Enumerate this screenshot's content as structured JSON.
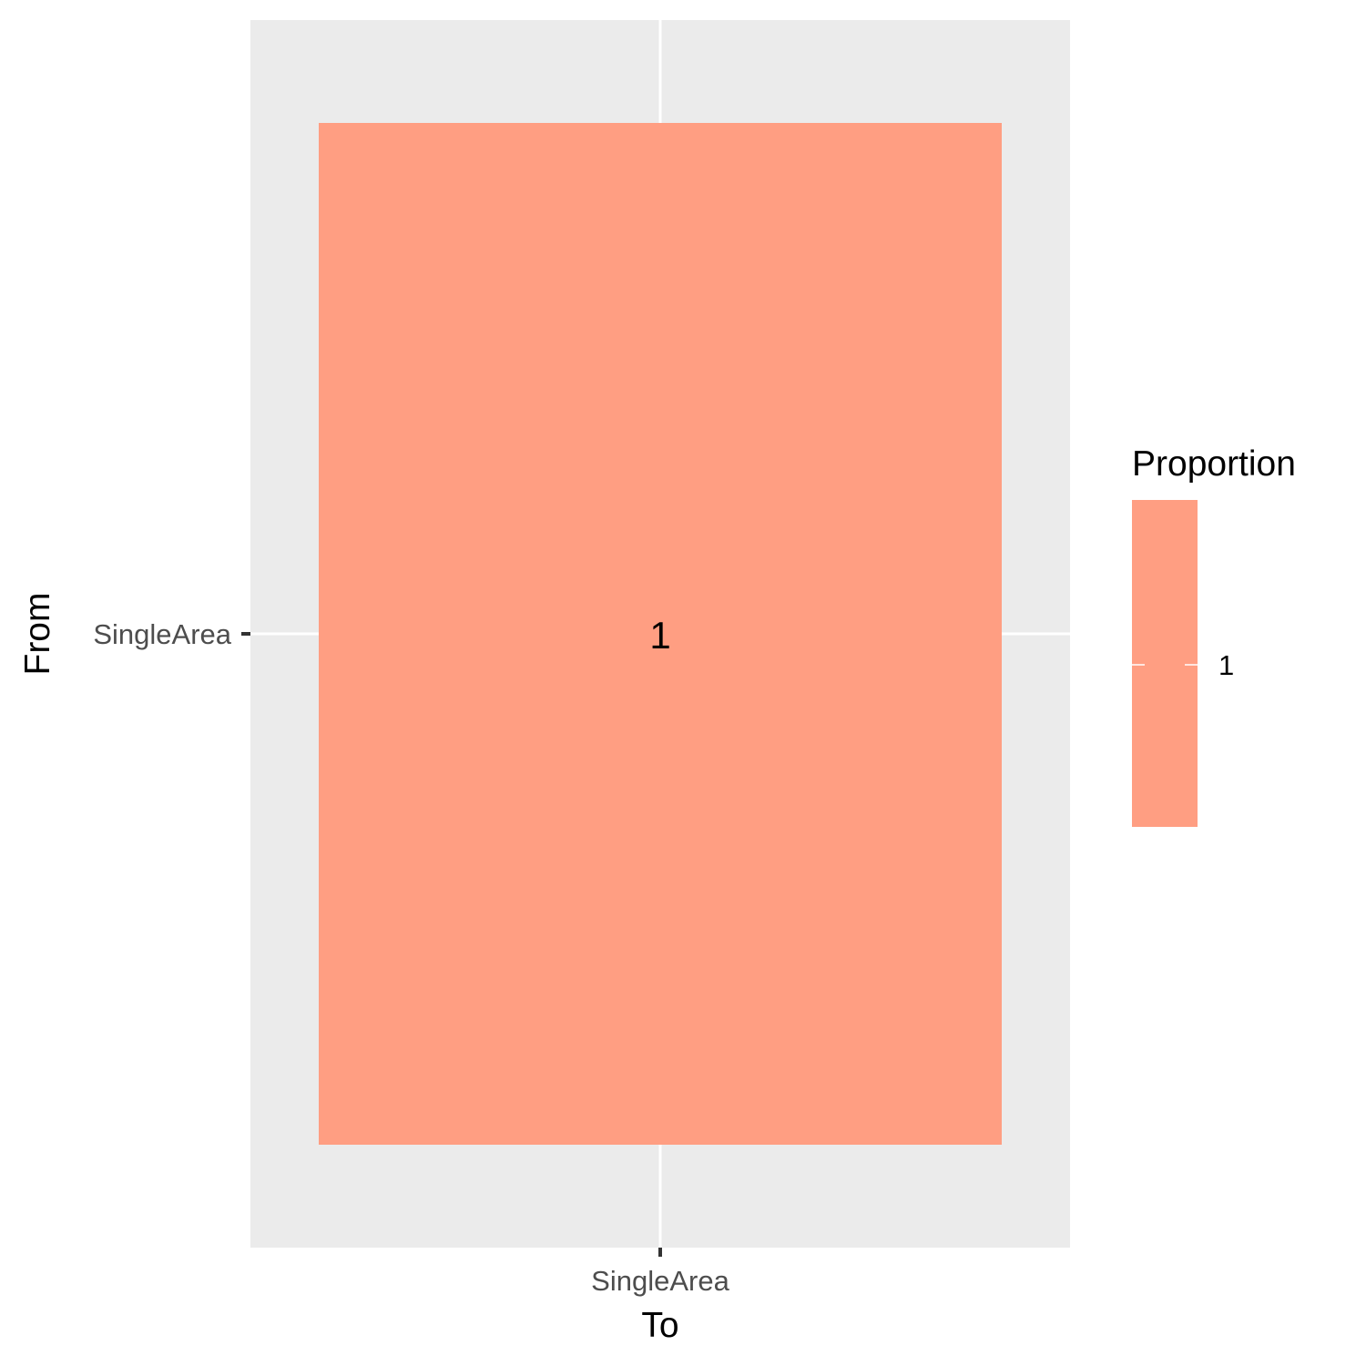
{
  "chart_data": {
    "type": "heatmap",
    "x_categories": [
      "SingleArea"
    ],
    "y_categories": [
      "SingleArea"
    ],
    "cells": [
      {
        "x": "SingleArea",
        "y": "SingleArea",
        "value": 1,
        "label": "1"
      }
    ],
    "xlabel": "To",
    "ylabel": "From",
    "legend": {
      "title": "Proportion",
      "placement": "right",
      "entries": [
        {
          "label": "1",
          "value": 1
        }
      ]
    },
    "colors": {
      "fill": "#ff9e82",
      "panel": "#ebebeb",
      "grid": "#ffffff"
    },
    "grid": true
  }
}
